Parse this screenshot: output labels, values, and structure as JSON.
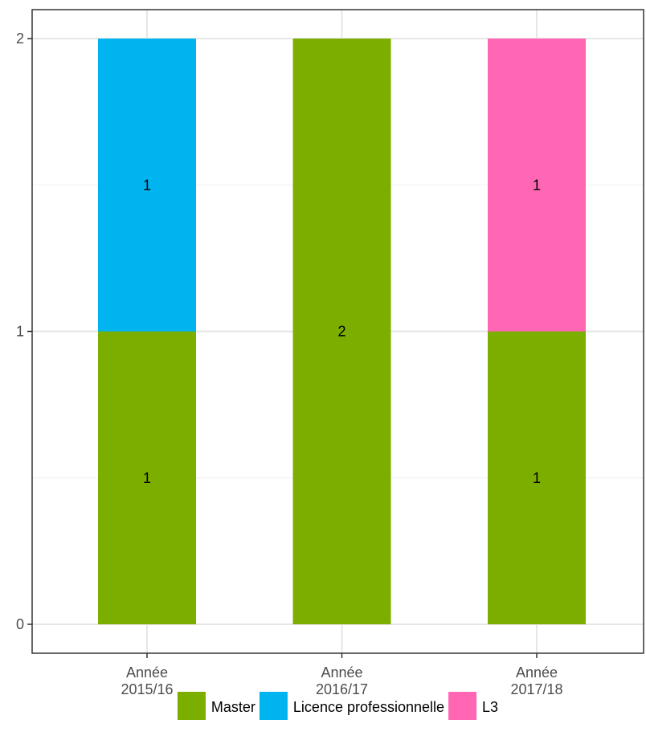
{
  "chart_data": {
    "type": "bar",
    "stacked": true,
    "title": "",
    "xlabel": "",
    "ylabel": "",
    "categories": [
      "Année\n2015/16",
      "Année\n2016/17",
      "Année\n2017/18"
    ],
    "series": [
      {
        "name": "Master",
        "color": "#7CAE00",
        "values": [
          1,
          2,
          1
        ]
      },
      {
        "name": "Licence professionnelle",
        "color": "#00B4F0",
        "values": [
          1,
          0,
          0
        ]
      },
      {
        "name": "L3",
        "color": "#FF67B5",
        "values": [
          0,
          0,
          1
        ]
      }
    ],
    "ylim": [
      0,
      2
    ],
    "yticks": [
      0,
      1,
      2
    ],
    "grid": true,
    "legend": "bottom"
  }
}
